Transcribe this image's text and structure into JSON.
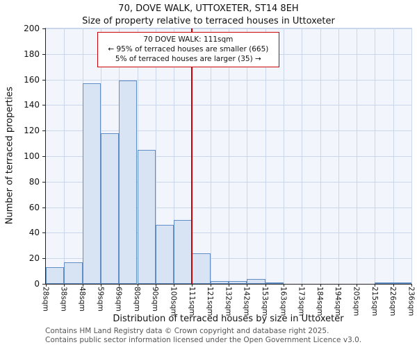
{
  "title": "70, DOVE WALK, UTTOXETER, ST14 8EH",
  "subtitle": "Size of property relative to terraced houses in Uttoxeter",
  "chart_data": {
    "type": "bar",
    "title": "70, DOVE WALK, UTTOXETER, ST14 8EH",
    "subtitle": "Size of property relative to terraced houses in Uttoxeter",
    "bin_edge_labels": [
      "28sqm",
      "38sqm",
      "48sqm",
      "59sqm",
      "69sqm",
      "80sqm",
      "90sqm",
      "100sqm",
      "111sqm",
      "121sqm",
      "132sqm",
      "142sqm",
      "153sqm",
      "163sqm",
      "173sqm",
      "184sqm",
      "194sqm",
      "205sqm",
      "215sqm",
      "226sqm",
      "236sqm"
    ],
    "values": [
      13,
      17,
      157,
      118,
      159,
      105,
      46,
      50,
      24,
      2,
      2,
      4,
      1,
      0,
      0,
      0,
      0,
      0,
      1,
      1
    ],
    "ylabel": "Number of terraced properties",
    "xlabel": "Distribution of terraced houses by size in Uttoxeter",
    "ylim": [
      0,
      200
    ],
    "ytick_step": 20,
    "grid": true,
    "legend": "none",
    "marker": {
      "label": "111sqm",
      "edge_index": 8
    },
    "annotation": {
      "line1": "70 DOVE WALK: 111sqm",
      "line2": "← 95% of terraced houses are smaller (665)",
      "line3": "5% of terraced houses are larger (35) →"
    },
    "colors": {
      "bar_fill": "#d8e4f3",
      "bar_edge": "#5f8dc4",
      "marker_line": "#cc0000",
      "grid": "#c9d6ec",
      "annotation_border": "#cc0000",
      "plot_background": "#f2f6fc"
    }
  },
  "footer": {
    "line1": "Contains HM Land Registry data © Crown copyright and database right 2025.",
    "line2": "Contains public sector information licensed under the Open Government Licence v3.0."
  }
}
